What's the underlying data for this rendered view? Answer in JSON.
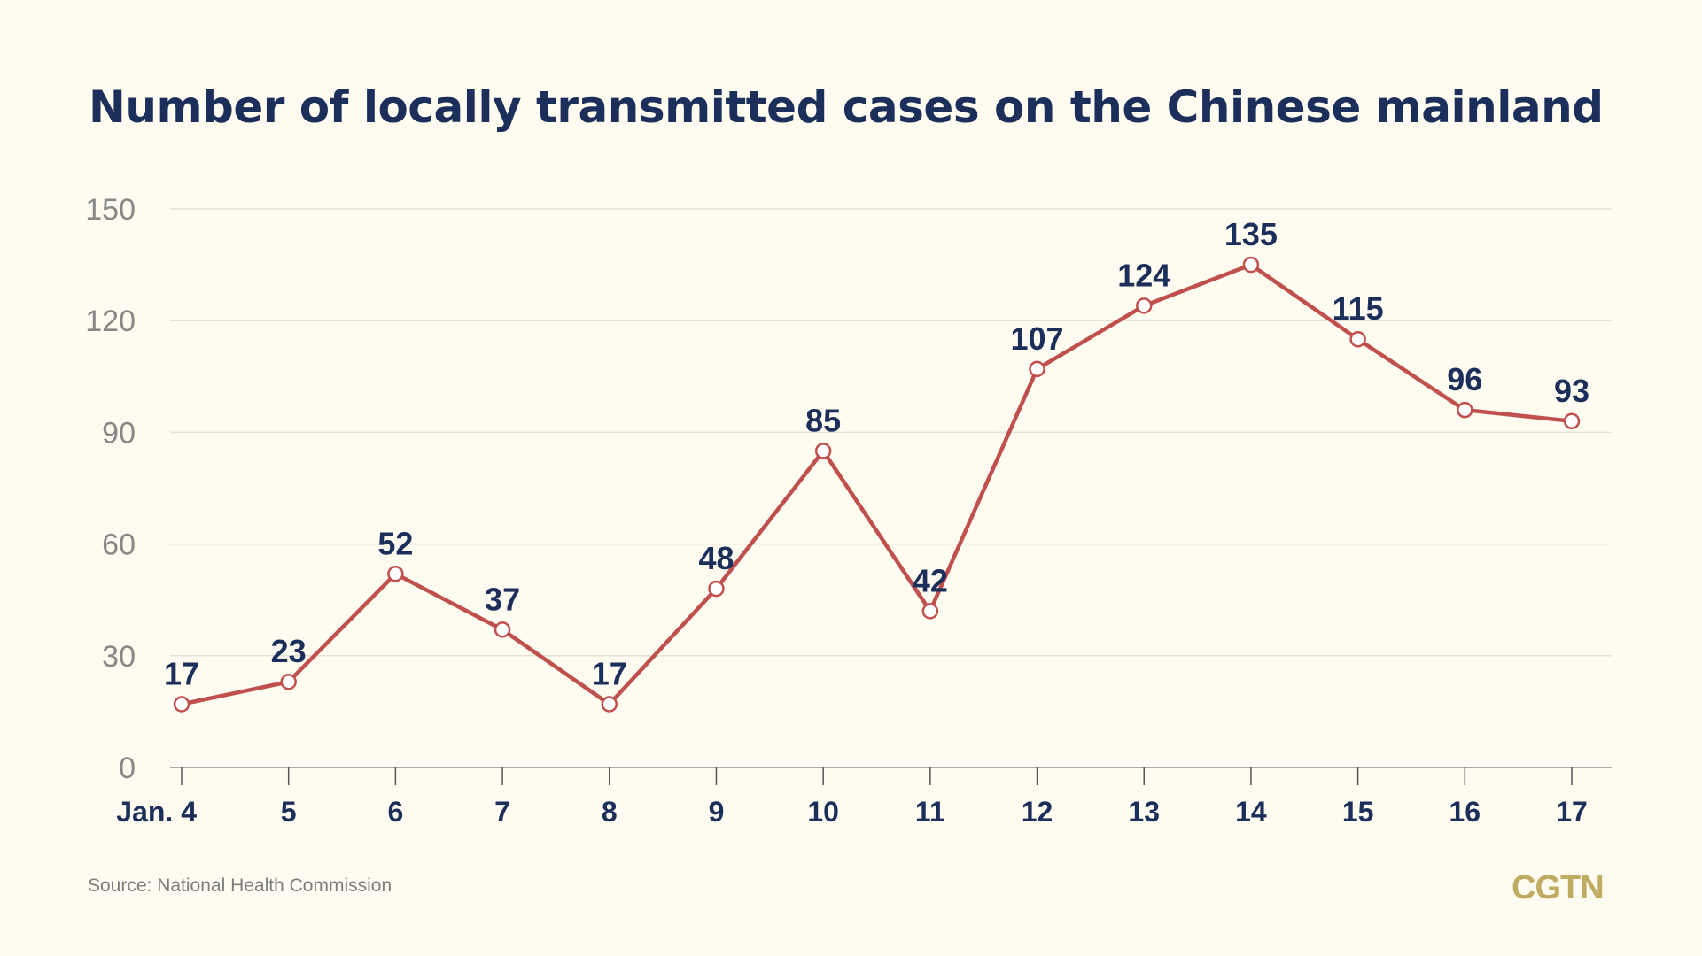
{
  "chart_data": {
    "type": "line",
    "title": "Number of locally transmitted cases on the Chinese mainland",
    "x_first_prefix": "Jan.",
    "categories": [
      "4",
      "5",
      "6",
      "7",
      "8",
      "9",
      "10",
      "11",
      "12",
      "13",
      "14",
      "15",
      "16",
      "17"
    ],
    "values": [
      17,
      23,
      52,
      37,
      17,
      48,
      85,
      42,
      107,
      124,
      135,
      115,
      96,
      93
    ],
    "yticks": [
      0,
      30,
      60,
      90,
      120,
      150
    ],
    "ylim": [
      0,
      150
    ],
    "grid": true,
    "legend": "none",
    "colors": {
      "line": "#c0504d",
      "marker_fill": "#ffffff",
      "labels": "#1c2f5b",
      "ticks": "#888888",
      "grid": "#e6e2d6"
    }
  },
  "source": "Source: National Health Commission",
  "logo": "CGTN"
}
